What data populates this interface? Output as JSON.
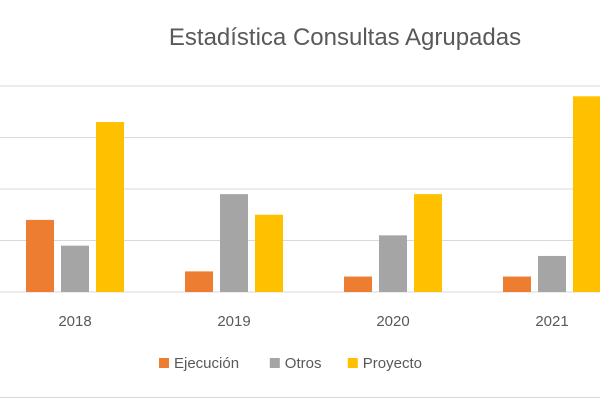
{
  "chart_data": {
    "type": "bar",
    "title": "Estadística Consultas Agrupadas",
    "xlabel": "",
    "ylabel": "",
    "categories": [
      "2018",
      "2019",
      "2020",
      "2021"
    ],
    "series": [
      {
        "name": "Ejecución",
        "color": "#ED7D31",
        "values": [
          14,
          4,
          3,
          3
        ]
      },
      {
        "name": "Otros",
        "color": "#A5A5A5",
        "values": [
          9,
          19,
          11,
          7
        ]
      },
      {
        "name": "Proyecto",
        "color": "#FFC000",
        "values": [
          33,
          15,
          19,
          38
        ]
      }
    ],
    "ylim": [
      0,
      40
    ],
    "grid": true,
    "legend_position": "bottom"
  }
}
